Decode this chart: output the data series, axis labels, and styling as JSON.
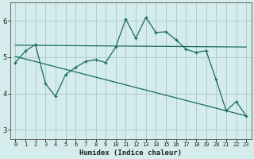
{
  "xlabel": "Humidex (Indice chaleur)",
  "bg_color": "#d5ecec",
  "grid_color": "#b0cccc",
  "line_color": "#1a6b5a",
  "xlim": [
    -0.5,
    23.5
  ],
  "ylim": [
    2.75,
    6.5
  ],
  "xticks": [
    0,
    1,
    2,
    3,
    4,
    5,
    6,
    7,
    8,
    9,
    10,
    11,
    12,
    13,
    14,
    15,
    16,
    17,
    18,
    19,
    20,
    21,
    22,
    23
  ],
  "yticks": [
    3,
    4,
    5,
    6
  ],
  "main_x": [
    0,
    1,
    2,
    3,
    4,
    5,
    6,
    7,
    8,
    9,
    10,
    11,
    12,
    13,
    14,
    15,
    16,
    17,
    18,
    19,
    20,
    21,
    22,
    23
  ],
  "main_y": [
    4.85,
    5.17,
    5.35,
    4.27,
    3.92,
    4.52,
    4.72,
    4.88,
    4.93,
    4.85,
    5.28,
    6.05,
    5.52,
    6.1,
    5.68,
    5.7,
    5.48,
    5.22,
    5.13,
    5.18,
    4.38,
    3.52,
    3.78,
    3.38
  ],
  "line1_x": [
    0,
    23
  ],
  "line1_y": [
    5.33,
    5.28
  ],
  "line2_x": [
    0,
    23
  ],
  "line2_y": [
    5.02,
    3.38
  ]
}
